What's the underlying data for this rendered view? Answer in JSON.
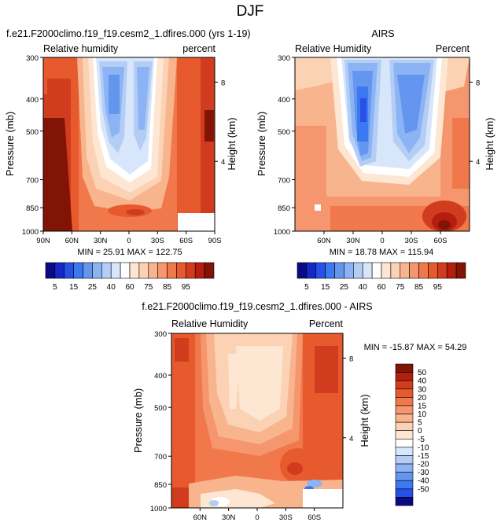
{
  "figure": {
    "title": "DJF"
  },
  "panels": [
    {
      "id": "model",
      "title": "f.e21.F2000climo.f19_f19.cesm2_1.dfires.000 (yrs 1-19)",
      "left_string": "Relative humidity",
      "right_string": "percent",
      "stats": "MIN =  25.91   MAX = 122.75"
    },
    {
      "id": "obs",
      "title": "AIRS",
      "left_string": "Relative Humidity",
      "right_string": "Percent",
      "stats": "MIN =  18.78   MAX = 115.94"
    },
    {
      "id": "diff",
      "title": "f.e21.F2000climo.f19_f19.cesm2_1.dfires.000 - AIRS",
      "left_string": "Relative Humidity",
      "right_string": "Percent",
      "stats": "MIN = -15.87   MAX =  54.29"
    }
  ],
  "axes": {
    "ylabel": "Pressure (mb)",
    "ylabel_right": "Height (km)",
    "pressure_ticks": [
      "300",
      "400",
      "500",
      "700",
      "850",
      "1000"
    ],
    "height_ticks": [
      "8",
      "4"
    ],
    "lat_ticks_model": [
      "90N",
      "60N",
      "30N",
      "0",
      "30S",
      "60S",
      "90S"
    ],
    "lat_ticks_obs": [
      "60N",
      "30N",
      "0",
      "30S",
      "60S"
    ],
    "lat_ticks_diff": [
      "60N",
      "30N",
      "0",
      "30S",
      "60S"
    ]
  },
  "colorbars": {
    "rh_labels": [
      "5",
      "15",
      "25",
      "40",
      "60",
      "75",
      "85",
      "95"
    ],
    "rh_colors": [
      "#0a0a82",
      "#1428c8",
      "#2850e6",
      "#3c78f0",
      "#6496f0",
      "#8cb4f5",
      "#b4cdf5",
      "#d7e6fa",
      "#ffffff",
      "#fde6d2",
      "#fbd2b4",
      "#f8b48c",
      "#f5966e",
      "#f0784b",
      "#e65a2d",
      "#d23c1e",
      "#b41e0f",
      "#821405"
    ],
    "diff_labels": [
      "50",
      "40",
      "30",
      "20",
      "15",
      "10",
      "5",
      "0",
      "-5",
      "-10",
      "-15",
      "-20",
      "-30",
      "-40",
      "-50"
    ],
    "diff_colors": [
      "#821405",
      "#b41e0f",
      "#d23c1e",
      "#e65a2d",
      "#f0784b",
      "#f5966e",
      "#f8b48c",
      "#fbd2b4",
      "#fde6d2",
      "#ffffff",
      "#d7e6fa",
      "#b4cdf5",
      "#8cb4f5",
      "#6496f0",
      "#3c78f0",
      "#2850e6",
      "#0a0a82"
    ]
  },
  "chart_data": [
    {
      "type": "heatmap",
      "title": "f.e21.F2000climo.f19_f19.cesm2_1.dfires.000 (yrs 1-19)",
      "xlabel": "Latitude",
      "ylabel": "Pressure (mb)",
      "x": [
        90,
        60,
        30,
        0,
        -30,
        -60,
        -90
      ],
      "y": [
        300,
        400,
        500,
        700,
        850,
        1000
      ],
      "xlim": [
        90,
        -90
      ],
      "ylim": [
        300,
        1000
      ],
      "units": "percent",
      "min": 25.91,
      "max": 122.75,
      "values": [
        [
          88,
          80,
          55,
          42,
          58,
          85,
          92
        ],
        [
          90,
          78,
          48,
          45,
          52,
          82,
          94
        ],
        [
          92,
          80,
          42,
          55,
          48,
          80,
          95
        ],
        [
          95,
          82,
          45,
          60,
          50,
          82,
          96
        ],
        [
          98,
          85,
          62,
          70,
          65,
          80,
          90
        ],
        [
          100,
          88,
          80,
          85,
          82,
          86,
          88
        ]
      ]
    },
    {
      "type": "heatmap",
      "title": "AIRS",
      "xlabel": "Latitude",
      "ylabel": "Pressure (mb)",
      "x": [
        90,
        60,
        30,
        0,
        -30,
        -60,
        -90
      ],
      "y": [
        300,
        400,
        500,
        700,
        850,
        1000
      ],
      "xlim": [
        90,
        -90
      ],
      "ylim": [
        300,
        1000
      ],
      "units": "Percent",
      "min": 18.78,
      "max": 115.94,
      "values": [
        [
          60,
          55,
          40,
          48,
          42,
          58,
          70
        ],
        [
          58,
          52,
          30,
          50,
          35,
          55,
          68
        ],
        [
          62,
          55,
          22,
          52,
          30,
          58,
          70
        ],
        [
          65,
          58,
          28,
          55,
          35,
          62,
          72
        ],
        [
          70,
          68,
          55,
          62,
          60,
          80,
          85
        ],
        [
          78,
          75,
          72,
          70,
          75,
          95,
          88
        ]
      ]
    },
    {
      "type": "heatmap",
      "title": "f.e21.F2000climo.f19_f19.cesm2_1.dfires.000 - AIRS",
      "xlabel": "Latitude",
      "ylabel": "Pressure (mb)",
      "x": [
        90,
        60,
        30,
        0,
        -30,
        -60,
        -90
      ],
      "y": [
        300,
        400,
        500,
        700,
        850,
        1000
      ],
      "xlim": [
        90,
        -90
      ],
      "ylim": [
        300,
        1000
      ],
      "units": "Percent",
      "min": -15.87,
      "max": 54.29,
      "values": [
        [
          28,
          25,
          15,
          5,
          12,
          28,
          30
        ],
        [
          30,
          26,
          18,
          4,
          16,
          26,
          28
        ],
        [
          28,
          24,
          20,
          6,
          18,
          22,
          26
        ],
        [
          30,
          24,
          18,
          8,
          16,
          20,
          24
        ],
        [
          28,
          18,
          8,
          10,
          6,
          2,
          6
        ],
        [
          22,
          12,
          4,
          12,
          6,
          -10,
          0
        ]
      ]
    }
  ]
}
